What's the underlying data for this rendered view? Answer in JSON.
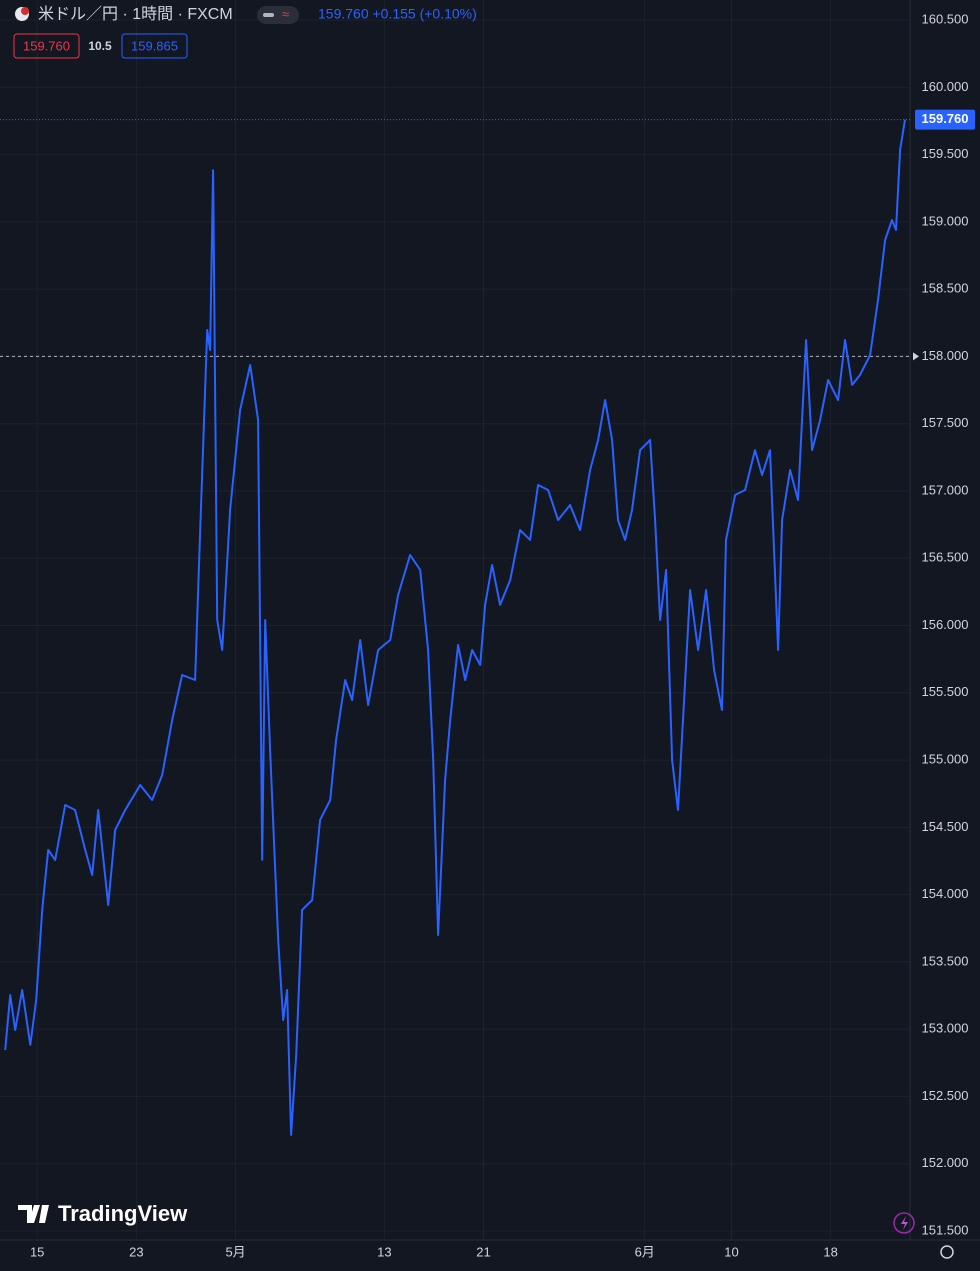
{
  "chart_data": {
    "type": "line",
    "title": "米ドル／円 · 1時間 · FXCM",
    "quote": "159.760 +0.155 (+0.10%)",
    "bid": "159.760",
    "spread": "10.5",
    "ask": "159.865",
    "last_label": "159.760",
    "watermark": "TradingView",
    "color": "#2962ff",
    "hline": 158,
    "grid": true,
    "xlim": [
      -3,
      70.4
    ],
    "ylim": [
      151.433,
      160.649
    ],
    "xticks": [
      {
        "value": 0,
        "label": "15"
      },
      {
        "value": 8,
        "label": "23"
      },
      {
        "value": 16,
        "label": "5月"
      },
      {
        "value": 28,
        "label": "13"
      },
      {
        "value": 36,
        "label": "21"
      },
      {
        "value": 49,
        "label": "6月"
      },
      {
        "value": 56,
        "label": "10"
      },
      {
        "value": 64,
        "label": "18"
      }
    ],
    "yticks": [
      {
        "value": 151.5,
        "label": "151.500"
      },
      {
        "value": 152,
        "label": "152.000"
      },
      {
        "value": 152.5,
        "label": "152.500"
      },
      {
        "value": 153,
        "label": "153.000"
      },
      {
        "value": 153.5,
        "label": "153.500"
      },
      {
        "value": 154,
        "label": "154.000"
      },
      {
        "value": 154.5,
        "label": "154.500"
      },
      {
        "value": 155,
        "label": "155.000"
      },
      {
        "value": 155.5,
        "label": "155.500"
      },
      {
        "value": 156,
        "label": "156.000"
      },
      {
        "value": 156.5,
        "label": "156.500"
      },
      {
        "value": 157,
        "label": "157.000"
      },
      {
        "value": 157.5,
        "label": "157.500"
      },
      {
        "value": 158,
        "label": "158.000"
      },
      {
        "value": 158.5,
        "label": "158.500"
      },
      {
        "value": 159,
        "label": "159.000"
      },
      {
        "value": 159.5,
        "label": "159.500"
      },
      {
        "value": 160,
        "label": "160.000"
      },
      {
        "value": 160.5,
        "label": "160.500"
      }
    ],
    "x": [
      -2.58,
      -2.18,
      -1.77,
      -1.21,
      -0.56,
      -0.08,
      0.4,
      0.89,
      1.45,
      2.26,
      3.06,
      3.87,
      4.44,
      4.92,
      5.73,
      6.29,
      7.1,
      8.31,
      9.27,
      10.08,
      10.89,
      11.69,
      12.74,
      13.15,
      13.71,
      13.95,
      14.19,
      14.52,
      14.92,
      15.56,
      16.37,
      17.18,
      17.82,
      18.15,
      18.39,
      18.79,
      19.44,
      19.84,
      20.16,
      20.48,
      20.89,
      21.37,
      22.18,
      22.82,
      23.63,
      24.11,
      24.84,
      25.4,
      26.05,
      26.69,
      27.5,
      28.47,
      29.11,
      30.08,
      30.89,
      31.53,
      31.94,
      32.34,
      32.9,
      33.31,
      33.95,
      34.52,
      35.08,
      35.73,
      36.13,
      36.69,
      37.34,
      38.15,
      38.95,
      39.76,
      40.4,
      41.21,
      42.02,
      42.98,
      43.79,
      44.6,
      45.24,
      45.81,
      46.37,
      46.85,
      47.42,
      47.98,
      48.63,
      49.44,
      49.84,
      50.24,
      50.73,
      51.21,
      51.69,
      52.18,
      52.66,
      53.31,
      53.95,
      54.6,
      55.24,
      55.56,
      56.29,
      57.1,
      57.9,
      58.47,
      59.11,
      59.76,
      60.08,
      60.73,
      61.37,
      62.02,
      62.5,
      63.15,
      63.79,
      64.6,
      65.16,
      65.73,
      66.37,
      67.18,
      67.82,
      68.39,
      68.95,
      69.27,
      69.6,
      70.0
    ],
    "values": [
      152.845,
      153.254,
      152.994,
      153.291,
      152.883,
      153.217,
      153.886,
      154.332,
      154.257,
      154.666,
      154.629,
      154.332,
      154.146,
      154.629,
      153.923,
      154.481,
      154.629,
      154.815,
      154.703,
      154.889,
      155.298,
      155.632,
      155.595,
      156.71,
      158.196,
      158.048,
      159.385,
      156.041,
      155.818,
      156.858,
      157.601,
      157.936,
      157.527,
      154.258,
      156.041,
      155.075,
      153.663,
      153.068,
      153.291,
      152.214,
      152.808,
      153.886,
      153.96,
      154.555,
      154.703,
      155.149,
      155.595,
      155.446,
      155.892,
      155.409,
      155.818,
      155.892,
      156.227,
      156.524,
      156.413,
      155.818,
      155.001,
      153.7,
      154.852,
      155.298,
      155.855,
      155.595,
      155.818,
      155.707,
      156.153,
      156.45,
      156.153,
      156.338,
      156.71,
      156.636,
      157.044,
      157.007,
      156.784,
      156.896,
      156.71,
      157.156,
      157.379,
      157.676,
      157.379,
      156.784,
      156.636,
      156.858,
      157.304,
      157.379,
      156.784,
      156.041,
      156.413,
      155.001,
      154.629,
      155.446,
      156.264,
      155.818,
      156.264,
      155.669,
      155.372,
      156.636,
      156.97,
      157.007,
      157.304,
      157.119,
      157.304,
      155.818,
      156.784,
      157.156,
      156.933,
      158.122,
      157.304,
      157.527,
      157.825,
      157.676,
      158.122,
      157.788,
      157.862,
      158.01,
      158.419,
      158.865,
      159.014,
      158.94,
      159.534,
      159.76
    ]
  }
}
